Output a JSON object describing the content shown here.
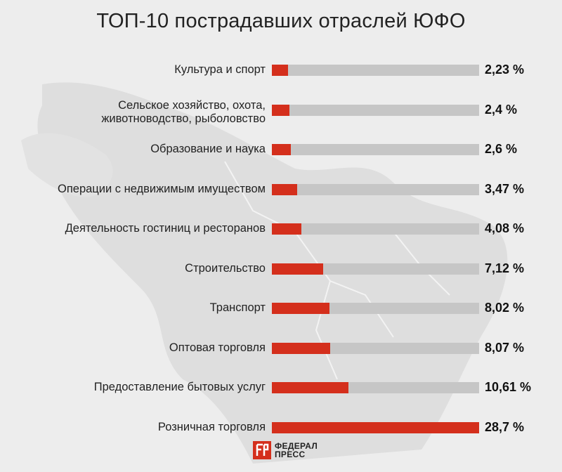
{
  "chart_data": {
    "type": "bar",
    "orientation": "horizontal",
    "title": "ТОП-10 пострадавших отраслей ЮФО",
    "categories": [
      "Культура и спорт",
      "Сельское хозяйство, охота,\nживотноводство, рыболовство",
      "Образование и наука",
      "Операции с недвижимым имуществом",
      "Деятельность гостиниц и ресторанов",
      "Строительство",
      "Транспорт",
      "Оптовая торговля",
      "Предоставление бытовых услуг",
      "Розничная торговля"
    ],
    "values": [
      2.23,
      2.4,
      2.6,
      3.47,
      4.08,
      7.12,
      8.02,
      8.07,
      10.61,
      28.7
    ],
    "value_labels": [
      "2,23 %",
      "2,4 %",
      "2,6 %",
      "3,47 %",
      "4,08 %",
      "7,12 %",
      "8,02 %",
      "8,07 %",
      "10,61 %",
      "28,7 %"
    ],
    "xlim": [
      0,
      28.7
    ],
    "unit": "%",
    "colors": {
      "bar": "#d42f1c",
      "track": "#c6c6c6",
      "background": "#ededed",
      "map": "#dcdcdc"
    }
  },
  "logo": {
    "line1": "ФЕДЕРАЛ",
    "line2": "ПРЕСС",
    "icon": "fp-logo-icon"
  }
}
